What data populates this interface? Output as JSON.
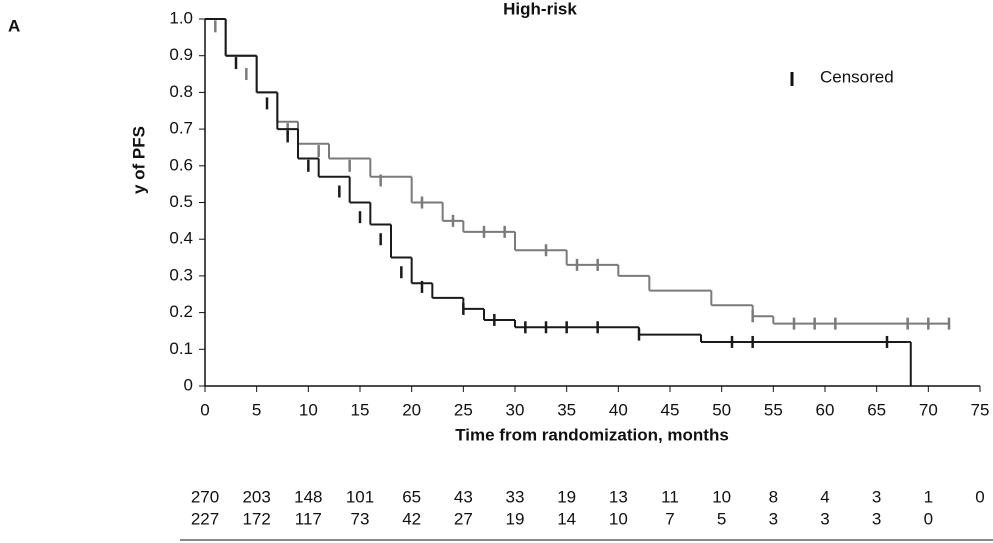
{
  "chart_data": {
    "type": "step",
    "panel_label": "A",
    "title": "High-risk",
    "y_label": "y of PFS",
    "x_label": "Time from randomization, months",
    "legend_label": "Censored",
    "xlim": [
      0,
      75
    ],
    "xticks": [
      0,
      5,
      10,
      15,
      20,
      25,
      30,
      35,
      40,
      45,
      50,
      55,
      60,
      65,
      70,
      75
    ],
    "ylim": [
      0,
      1
    ],
    "yticks": [
      0,
      0.1,
      0.2,
      0.3,
      0.4,
      0.5,
      0.6,
      0.7,
      {
        "value": 0.8,
        "label": "0.8"
      },
      0.9,
      {
        "value": 1,
        "label": "1.0"
      }
    ],
    "series": [
      {
        "color": "#7a7a7a",
        "x": [
          0,
          2,
          5,
          7,
          9,
          12,
          16,
          20,
          23,
          25,
          30,
          35,
          40,
          43,
          49,
          53,
          55,
          72
        ],
        "values": [
          1,
          0.9,
          0.8,
          0.72,
          0.66,
          0.62,
          0.57,
          0.5,
          0.45,
          0.42,
          0.37,
          0.33,
          0.3,
          0.26,
          0.22,
          0.19,
          0.17,
          0.17
        ],
        "censor_x": [
          1,
          4,
          8,
          11,
          14,
          17,
          21,
          24,
          27,
          29,
          33,
          36,
          38,
          53,
          57,
          59,
          61,
          68,
          70,
          72
        ],
        "censor_y": [
          0.98,
          0.85,
          0.7,
          0.64,
          0.6,
          0.56,
          0.5,
          0.45,
          0.42,
          0.42,
          0.37,
          0.33,
          0.33,
          0.19,
          0.17,
          0.17,
          0.17,
          0.17,
          0.17,
          0.17
        ]
      },
      {
        "color": "#1a1a1a",
        "x": [
          0,
          2,
          5,
          7,
          9,
          11,
          14,
          16,
          18,
          20,
          22,
          25,
          27,
          30,
          42,
          48,
          68,
          68.3
        ],
        "values": [
          1,
          0.9,
          0.8,
          0.7,
          0.62,
          0.57,
          0.5,
          0.44,
          0.35,
          0.28,
          0.24,
          0.21,
          0.18,
          0.16,
          0.14,
          0.12,
          0.12,
          0
        ],
        "censor_x": [
          3,
          6,
          8,
          10,
          13,
          15,
          17,
          19,
          21,
          25,
          28,
          31,
          33,
          35,
          38,
          42,
          51,
          53,
          66
        ],
        "censor_y": [
          0.88,
          0.77,
          0.68,
          0.6,
          0.53,
          0.46,
          0.4,
          0.31,
          0.27,
          0.21,
          0.18,
          0.16,
          0.16,
          0.16,
          0.16,
          0.14,
          0.12,
          0.12,
          0.12
        ]
      }
    ],
    "risk_table": [
      [
        270,
        203,
        148,
        101,
        65,
        43,
        33,
        19,
        13,
        11,
        10,
        8,
        4,
        3,
        1,
        0
      ],
      [
        227,
        172,
        117,
        73,
        42,
        27,
        19,
        14,
        10,
        7,
        5,
        3,
        3,
        3,
        0
      ]
    ]
  }
}
